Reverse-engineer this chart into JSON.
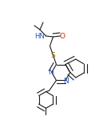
{
  "bg_color": "#ffffff",
  "line_color": "#1a1a1a",
  "text_color": "#1a1a1a",
  "atom_colors": {
    "N": "#2255cc",
    "O": "#cc2200",
    "S": "#886600",
    "C": "#1a1a1a",
    "H": "#1a1a1a"
  },
  "figsize": [
    1.39,
    1.6
  ],
  "dpi": 100
}
